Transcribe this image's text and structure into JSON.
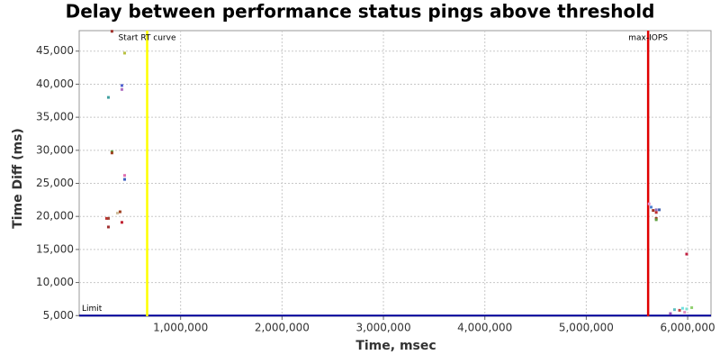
{
  "chart_data": {
    "type": "scatter",
    "title": "Delay between performance status pings above threshold",
    "x_label": "Time, msec",
    "y_label": "Time Diff (ms)",
    "x": [
      323000,
      448000,
      288000,
      421000,
      421000,
      323000,
      323000,
      448000,
      448000,
      270000,
      288000,
      403000,
      421000,
      288000,
      377000,
      5620000,
      5640000,
      5660000,
      5690000,
      5720000,
      5690000,
      5690000,
      5690000,
      5990000,
      5830000,
      5870000,
      5920000,
      5950000,
      5990000,
      6040000,
      5970000
    ],
    "values": [
      48000,
      44700,
      38000,
      39800,
      39200,
      29800,
      29600,
      26200,
      25600,
      19700,
      19700,
      20700,
      19100,
      18400,
      20500,
      21900,
      21400,
      20900,
      21000,
      21000,
      20600,
      19700,
      19500,
      14300,
      5300,
      5900,
      5800,
      6100,
      6000,
      6200,
      5500
    ],
    "colors": [
      "#a0302a",
      "#b8c040",
      "#40a0a0",
      "#5060d0",
      "#b070c0",
      "#60a040",
      "#a04020",
      "#e070b0",
      "#4060c0",
      "#c03030",
      "#a04030",
      "#a04020",
      "#c02030",
      "#a03030",
      "#d0c0a0",
      "#e090d0",
      "#5080d0",
      "#a03020",
      "#9070c0",
      "#4060b0",
      "#c03030",
      "#a04020",
      "#60a040",
      "#c02040",
      "#9050b0",
      "#60c0c0",
      "#c04040",
      "#70e0e0",
      "#80e0d0",
      "#90d070",
      "#e090c0"
    ],
    "xlim": [
      0,
      6230000
    ],
    "ylim": [
      4900,
      48100
    ],
    "xticks": [
      {
        "value": 1000000,
        "label": "1,000,000"
      },
      {
        "value": 2000000,
        "label": "2,000,000"
      },
      {
        "value": 3000000,
        "label": "3,000,000"
      },
      {
        "value": 4000000,
        "label": "4,000,000"
      },
      {
        "value": 5000000,
        "label": "5,000,000"
      },
      {
        "value": 6000000,
        "label": "6,000,000"
      }
    ],
    "yticks": [
      {
        "value": 5000,
        "label": "5,000"
      },
      {
        "value": 10000,
        "label": "10,000"
      },
      {
        "value": 15000,
        "label": "15,000"
      },
      {
        "value": 20000,
        "label": "20,000"
      },
      {
        "value": 25000,
        "label": "25,000"
      },
      {
        "value": 30000,
        "label": "30,000"
      },
      {
        "value": 35000,
        "label": "35,000"
      },
      {
        "value": 40000,
        "label": "40,000"
      },
      {
        "value": 45000,
        "label": "45,000"
      }
    ],
    "grid": true,
    "vlines": [
      {
        "x": 670000,
        "color": "#ffff00",
        "label": "Start RT curve"
      },
      {
        "x": 5610000,
        "color": "#e00000",
        "label": "max-IOPS"
      }
    ],
    "hlines": [
      {
        "y": 5000,
        "color": "#000099",
        "label": "Limit"
      }
    ]
  }
}
